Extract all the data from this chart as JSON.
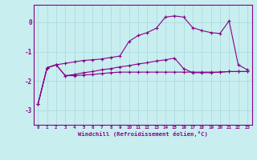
{
  "background_color": "#c8eef0",
  "line_color": "#880088",
  "grid_color": "#a8d8dc",
  "xlim": [
    -0.5,
    23.5
  ],
  "ylim": [
    -3.5,
    0.6
  ],
  "xticks": [
    0,
    1,
    2,
    3,
    4,
    5,
    6,
    7,
    8,
    9,
    10,
    11,
    12,
    13,
    14,
    15,
    16,
    17,
    18,
    19,
    20,
    21,
    22,
    23
  ],
  "yticks": [
    0,
    -1,
    -2,
    -3
  ],
  "xlabel": "Windchill (Refroidissement éolien,°C)",
  "x": [
    0,
    1,
    2,
    3,
    4,
    5,
    6,
    7,
    8,
    9,
    10,
    11,
    12,
    13,
    14,
    15,
    16,
    17,
    18,
    19,
    20,
    21,
    22,
    23
  ],
  "line1": [
    -2.8,
    -1.55,
    -1.45,
    -1.4,
    -1.35,
    -1.3,
    -1.28,
    -1.25,
    -1.2,
    -1.15,
    -0.65,
    -0.45,
    -0.35,
    -0.2,
    0.18,
    0.22,
    0.18,
    -0.18,
    -0.28,
    -0.35,
    -0.38,
    0.05,
    -1.45,
    -1.62
  ],
  "line2": [
    -2.8,
    -1.55,
    -1.45,
    -1.82,
    -1.82,
    -1.8,
    -1.78,
    -1.75,
    -1.72,
    -1.7,
    -1.7,
    -1.7,
    -1.7,
    -1.7,
    -1.7,
    -1.7,
    -1.7,
    -1.7,
    -1.7,
    -1.7,
    -1.7,
    -1.68,
    -1.68,
    -1.68
  ],
  "line3": [
    -2.8,
    -1.55,
    -1.45,
    -1.82,
    -1.78,
    -1.72,
    -1.68,
    -1.62,
    -1.58,
    -1.52,
    -1.48,
    -1.42,
    -1.38,
    -1.32,
    -1.28,
    -1.22,
    -1.58,
    -1.72,
    -1.72,
    -1.72,
    -1.7,
    -1.68,
    -1.68,
    -1.68
  ]
}
